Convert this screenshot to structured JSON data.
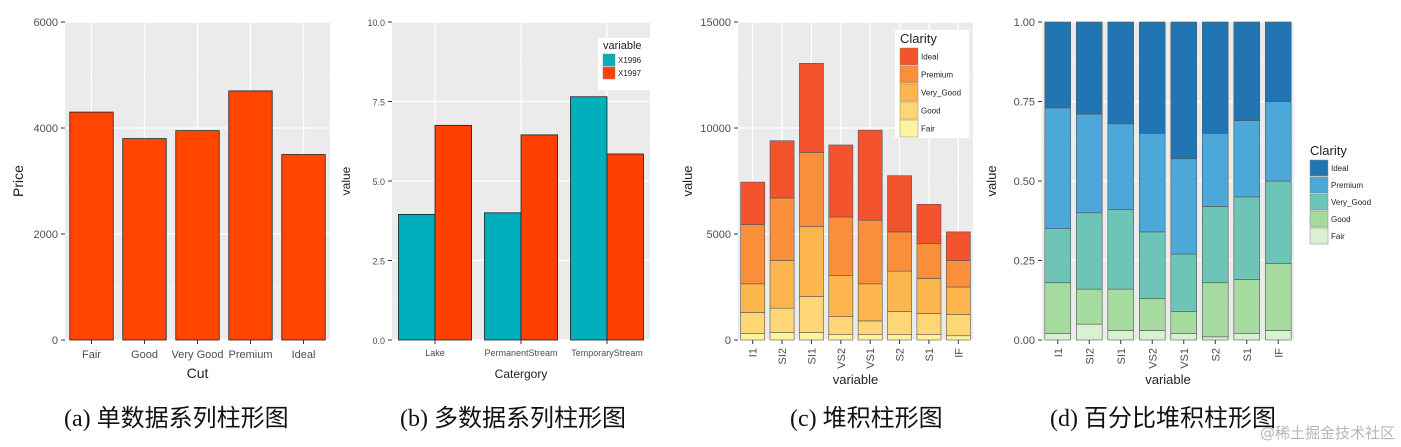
{
  "chart_data": [
    {
      "type": "bar",
      "caption": "(a)  单数据系列柱形图",
      "categories": [
        "Fair",
        "Good",
        "Very Good",
        "Premium",
        "Ideal"
      ],
      "values": [
        4300,
        3800,
        3950,
        4700,
        3500
      ],
      "xlabel": "Cut",
      "ylabel": "Price",
      "ylim": [
        0,
        6000
      ],
      "yticks": [
        0,
        2000,
        4000,
        6000
      ],
      "ytick_labels": [
        "0",
        "2000",
        "4000",
        "6000"
      ],
      "color": "#FF4500"
    },
    {
      "type": "bar",
      "caption": "(b)  多数据系列柱形图",
      "categories": [
        "Lake",
        "PermanentStream",
        "TemporaryStream"
      ],
      "series": [
        {
          "name": "X1996",
          "values": [
            3.95,
            4.0,
            7.65
          ],
          "color": "#00AFBB"
        },
        {
          "name": "X1997",
          "values": [
            6.75,
            6.45,
            5.85
          ],
          "color": "#FF4000"
        }
      ],
      "legend_title": "variable",
      "xlabel": "Catergory",
      "ylabel": "value",
      "ylim": [
        0,
        10
      ],
      "yticks": [
        0,
        2.5,
        5,
        7.5,
        10
      ],
      "ytick_labels": [
        "0.0",
        "2.5",
        "5.0",
        "7.5",
        "10.0"
      ]
    },
    {
      "type": "bar",
      "stacked": true,
      "caption": "(c)  堆积柱形图",
      "categories": [
        "I1",
        "SI2",
        "SI1",
        "VS2",
        "VS1",
        "S2",
        "S1",
        "IF"
      ],
      "series": [
        {
          "name": "Fair",
          "values": [
            300,
            350,
            350,
            250,
            250,
            250,
            250,
            200
          ],
          "color": "#FFF2A0"
        },
        {
          "name": "Good",
          "values": [
            1000,
            1150,
            1700,
            850,
            650,
            1100,
            1000,
            1000
          ],
          "color": "#FED676"
        },
        {
          "name": "Very_Good",
          "values": [
            1350,
            2250,
            3300,
            1950,
            1750,
            1900,
            1650,
            1300
          ],
          "color": "#FDB54D"
        },
        {
          "name": "Premium",
          "values": [
            2800,
            2950,
            3500,
            2750,
            3000,
            1850,
            1650,
            1250
          ],
          "color": "#FA8F3B"
        },
        {
          "name": "Ideal",
          "values": [
            2000,
            2700,
            4200,
            3400,
            4250,
            2650,
            1850,
            1350
          ],
          "color": "#F2522C"
        }
      ],
      "legend_title": "Clarity",
      "xlabel": "variable",
      "ylabel": "value",
      "ylim": [
        0,
        15000
      ],
      "yticks": [
        0,
        5000,
        10000,
        15000
      ],
      "ytick_labels": [
        "0",
        "5000",
        "10000",
        "15000"
      ]
    },
    {
      "type": "bar",
      "stacked": true,
      "percent": true,
      "caption": "(d)  百分比堆积柱形图",
      "categories": [
        "I1",
        "SI2",
        "SI1",
        "VS2",
        "VS1",
        "S2",
        "S1",
        "IF"
      ],
      "series": [
        {
          "name": "Fair",
          "values": [
            0.02,
            0.05,
            0.03,
            0.03,
            0.02,
            0.01,
            0.02,
            0.03
          ],
          "color": "#D9F0D3"
        },
        {
          "name": "Good",
          "values": [
            0.16,
            0.11,
            0.13,
            0.1,
            0.07,
            0.17,
            0.17,
            0.21
          ],
          "color": "#A6DBA0"
        },
        {
          "name": "Very_Good",
          "values": [
            0.17,
            0.24,
            0.25,
            0.21,
            0.18,
            0.24,
            0.26,
            0.26
          ],
          "color": "#6FC4B8"
        },
        {
          "name": "Premium",
          "values": [
            0.38,
            0.31,
            0.27,
            0.31,
            0.3,
            0.23,
            0.24,
            0.25
          ],
          "color": "#4BA8D8"
        },
        {
          "name": "Ideal",
          "values": [
            0.27,
            0.29,
            0.32,
            0.35,
            0.43,
            0.35,
            0.31,
            0.25
          ],
          "color": "#2275B3"
        }
      ],
      "legend_title": "Clarity",
      "xlabel": "variable",
      "ylabel": "value",
      "ylim": [
        0,
        1
      ],
      "yticks": [
        0,
        0.25,
        0.5,
        0.75,
        1.0
      ],
      "ytick_labels": [
        "0.00",
        "0.25",
        "0.50",
        "0.75",
        "1.00"
      ]
    }
  ],
  "watermark": "@稀土掘金技术社区",
  "colors": {
    "panel": "#EBEBEB",
    "grid": "#FFFFFF",
    "tick_text": "#4D4D4D"
  }
}
